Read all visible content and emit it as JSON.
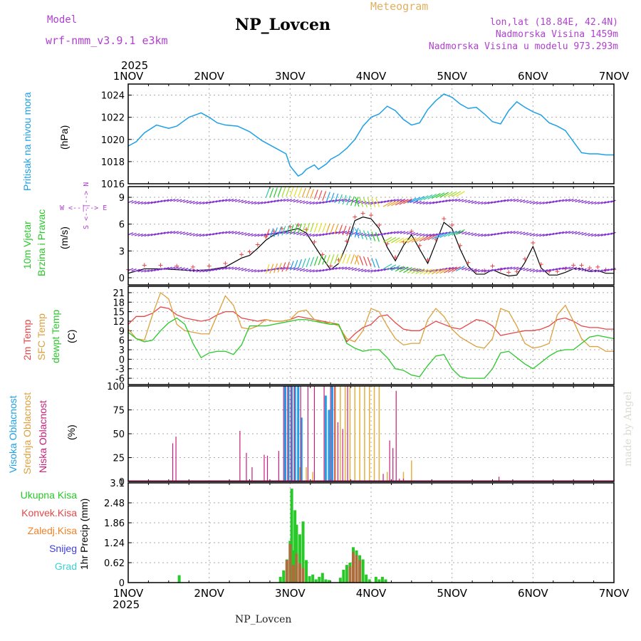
{
  "header": {
    "model_label": "Model",
    "model_name": "wrf-nmm_v3.9.1 e3km",
    "title": "NP_Lovcen",
    "meteogram": "Meteogram",
    "lonlat": "lon,lat (18.84E, 42.4N)",
    "elev": "Nadmorska Visina 1459m",
    "elev_model": "Nadmorska Visina u modelu 973.293m",
    "year_top": "2025",
    "year_bottom": "2025",
    "footer": "NP_Lovcen",
    "credit": "made by Angel"
  },
  "colors": {
    "pressure": "#1ea0e6",
    "temp2m": "#e64646",
    "sfc": "#dca03c",
    "dewpt": "#28c828",
    "high_cloud": "#1ea0e6",
    "mid_cloud": "#e6b03c",
    "low_cloud": "#c81e78",
    "precip": "#28c828",
    "conv": "#e64646",
    "frozen": "#f08228",
    "snow": "#3c3ce6",
    "hail": "#3cd2d2",
    "wind_dir": "#b040d0"
  },
  "x_axis": {
    "ticks": [
      "1NOV",
      "2NOV",
      "3NOV",
      "4NOV",
      "5NOV",
      "6NOV",
      "7NOV"
    ]
  },
  "labels": {
    "p1_name": "Pritisak na nivou mora",
    "p1_unit": "(hPa)",
    "p2_name1": "10m Vjetar",
    "p2_name2": "Brzina i Pravac",
    "p2_unit": "(m/s)",
    "p2_dir": "W <--|--> E",
    "p2_dir2": "S <--|--> N",
    "p3_name1": "2m Temp",
    "p3_name2": "SFC Temp",
    "p3_name3": "dewpt Temp",
    "p3_unit": "(C)",
    "p4_name1": "Visoka Oblacnost",
    "p4_name2": "Srednja Oblacnost",
    "p4_name3": "Niska Oblacnost",
    "p4_unit": "(%)",
    "p5_unit": "1hr Precip (mm)",
    "leg_total": "Ukupna Kisa",
    "leg_conv": "Konvek.Kisa",
    "leg_frozen": "Zaledj.Kisa",
    "leg_snow": "Snijeg",
    "leg_hail": "Grad"
  },
  "chart_data": [
    {
      "type": "line",
      "title": "Pritisak na nivou mora",
      "ylabel": "(hPa)",
      "ylim": [
        1016,
        1025
      ],
      "yticks": [
        "1016",
        "1018",
        "1020",
        "1022",
        "1024"
      ],
      "x_days": [
        0,
        0.1,
        0.2,
        0.35,
        0.5,
        0.6,
        0.75,
        0.9,
        1.0,
        1.1,
        1.2,
        1.35,
        1.5,
        1.65,
        1.8,
        1.95,
        2.0,
        2.1,
        2.15,
        2.2,
        2.3,
        2.35,
        2.45,
        2.5,
        2.6,
        2.7,
        2.8,
        2.9,
        3.0,
        3.1,
        3.2,
        3.3,
        3.4,
        3.5,
        3.6,
        3.7,
        3.8,
        3.9,
        4.0,
        4.1,
        4.2,
        4.3,
        4.4,
        4.5,
        4.6,
        4.7,
        4.8,
        4.9,
        5.0,
        5.1,
        5.2,
        5.3,
        5.4,
        5.5,
        5.6,
        5.7,
        5.8,
        5.9,
        6.0
      ],
      "values": [
        1019.4,
        1019.8,
        1020.6,
        1021.3,
        1021.0,
        1021.2,
        1022.0,
        1022.4,
        1022.0,
        1021.5,
        1021.3,
        1021.2,
        1020.7,
        1019.9,
        1019.3,
        1018.7,
        1017.6,
        1016.7,
        1016.9,
        1017.3,
        1017.7,
        1017.3,
        1017.8,
        1018.2,
        1018.6,
        1019.2,
        1020.0,
        1021.2,
        1022.0,
        1022.3,
        1023.0,
        1022.6,
        1021.8,
        1021.3,
        1021.5,
        1022.7,
        1023.5,
        1024.1,
        1023.8,
        1023.2,
        1022.8,
        1022.9,
        1022.3,
        1021.6,
        1021.4,
        1022.6,
        1023.4,
        1022.9,
        1022.5,
        1022.2,
        1021.5,
        1021.2,
        1020.8,
        1019.8,
        1018.8,
        1018.7,
        1018.7,
        1018.6,
        1018.6
      ]
    },
    {
      "type": "line",
      "title": "10m Vjetar Brzina i Pravac",
      "ylabel": "(m/s)",
      "ylim": [
        -0.8,
        10.2
      ],
      "yticks": [
        "0",
        "3",
        "6",
        "9"
      ],
      "series": [
        {
          "name": "Brzina",
          "x": [
            0,
            0.2,
            0.4,
            0.6,
            0.8,
            1.0,
            1.2,
            1.4,
            1.5,
            1.6,
            1.7,
            1.8,
            1.9,
            2.0,
            2.1,
            2.2,
            2.3,
            2.4,
            2.5,
            2.6,
            2.7,
            2.8,
            2.9,
            3.0,
            3.1,
            3.2,
            3.3,
            3.4,
            3.5,
            3.6,
            3.7,
            3.8,
            3.9,
            4.0,
            4.1,
            4.2,
            4.3,
            4.4,
            4.5,
            4.6,
            4.7,
            4.8,
            4.9,
            5.0,
            5.1,
            5.2,
            5.3,
            5.4,
            5.5,
            5.6,
            5.7,
            5.8,
            5.9,
            6.0
          ],
          "values": [
            0.5,
            1.0,
            1.0,
            0.9,
            0.8,
            0.9,
            1.2,
            2.2,
            2.5,
            3.3,
            4.2,
            4.8,
            5.1,
            5.3,
            5.5,
            5.0,
            3.6,
            2.2,
            0.9,
            1.6,
            3.7,
            6.4,
            6.8,
            6.6,
            5.5,
            3.4,
            1.9,
            3.6,
            4.8,
            3.2,
            1.6,
            3.9,
            6.2,
            5.5,
            3.2,
            1.3,
            0.4,
            0.4,
            0.9,
            0.5,
            0.2,
            0.3,
            1.7,
            3.5,
            1.1,
            0.3,
            0.3,
            0.6,
            1.0,
            1.0,
            0.7,
            0.8,
            0.5,
            0.5
          ]
        },
        {
          "name": "Pravac",
          "values": [
            1,
            1,
            5,
            5,
            9,
            9,
            0,
            0,
            7,
            7,
            10,
            10,
            0,
            0
          ]
        }
      ]
    },
    {
      "type": "line",
      "title": "Temperature",
      "ylabel": "(C)",
      "ylim": [
        -8,
        23
      ],
      "yticks": [
        "-6",
        "-3",
        "0",
        "3",
        "6",
        "9",
        "12",
        "15",
        "18",
        "21"
      ],
      "x": [
        0,
        0.1,
        0.2,
        0.3,
        0.4,
        0.5,
        0.6,
        0.7,
        0.8,
        0.9,
        1.0,
        1.1,
        1.2,
        1.3,
        1.4,
        1.5,
        1.6,
        1.7,
        1.8,
        1.9,
        2.0,
        2.1,
        2.2,
        2.3,
        2.4,
        2.5,
        2.6,
        2.7,
        2.8,
        2.9,
        3.0,
        3.1,
        3.2,
        3.3,
        3.4,
        3.5,
        3.6,
        3.7,
        3.8,
        3.9,
        4.0,
        4.1,
        4.2,
        4.3,
        4.4,
        4.5,
        4.6,
        4.7,
        4.8,
        4.9,
        5.0,
        5.1,
        5.2,
        5.3,
        5.4,
        5.5,
        5.6,
        5.7,
        5.8,
        5.9,
        6.0
      ],
      "series": [
        {
          "name": "2m Temp",
          "values": [
            11,
            13.5,
            13.5,
            14.5,
            16.5,
            16,
            14,
            13,
            12.5,
            12,
            12.5,
            14,
            15,
            15,
            13,
            12.5,
            12,
            12.5,
            12,
            12,
            12.5,
            13.5,
            13,
            12.5,
            12,
            11.5,
            11,
            5.5,
            8,
            10,
            11,
            13.5,
            14,
            11.5,
            9.5,
            9,
            9,
            10.5,
            12,
            11,
            10,
            9.5,
            11,
            12.5,
            12,
            10.5,
            7.5,
            8,
            8.5,
            9,
            9,
            9.5,
            10.5,
            12.5,
            13,
            12,
            10.5,
            10,
            10,
            9.5,
            9.5
          ]
        },
        {
          "name": "SFC Temp",
          "values": [
            9.5,
            6.5,
            6,
            14,
            21,
            19,
            11,
            9,
            8.5,
            8,
            8,
            14,
            20,
            17,
            10,
            9.5,
            10.5,
            12.5,
            12,
            12,
            12.5,
            15,
            15.5,
            12.5,
            11.5,
            11.5,
            10.5,
            6.5,
            5.5,
            9,
            16,
            15,
            10.5,
            6.5,
            4.5,
            5,
            5,
            12.5,
            16,
            13.5,
            9.5,
            7,
            5.5,
            4,
            3.5,
            6.5,
            16,
            15,
            10.5,
            5,
            3.5,
            4,
            5,
            14,
            17,
            12,
            6.5,
            4,
            4,
            2.5,
            2.5
          ]
        },
        {
          "name": "dewpt Temp",
          "values": [
            8.5,
            6.5,
            5.5,
            6,
            9,
            11.5,
            13,
            11,
            5,
            0.5,
            2,
            2.5,
            2.5,
            1.5,
            4.5,
            10.5,
            10.5,
            10.5,
            11,
            11.5,
            12,
            12.5,
            12.5,
            12,
            11.5,
            11,
            11,
            5,
            3.5,
            2.5,
            3,
            3,
            0.5,
            -3,
            -3.5,
            -5,
            -5.5,
            -2,
            1,
            1.5,
            -3,
            -5.5,
            -6,
            -6,
            -6,
            -3,
            2,
            2.5,
            0.5,
            -1.5,
            -3,
            -1,
            1,
            2.5,
            3,
            3,
            5,
            7,
            7.5,
            7,
            6.5
          ]
        }
      ]
    },
    {
      "type": "bar",
      "title": "Oblacnost",
      "ylabel": "(%)",
      "ylim": [
        0,
        100
      ],
      "yticks": [
        "0",
        "25",
        "50",
        "75",
        "100"
      ],
      "series": [
        {
          "name": "Visoka Oblacnost",
          "x": [
            1.94,
            1.98,
            2.02,
            2.06,
            2.1,
            2.14,
            2.44,
            2.48,
            2.52
          ],
          "values": [
            100,
            100,
            100,
            100,
            100,
            67,
            90,
            75,
            100
          ]
        },
        {
          "name": "Srednja Oblacnost",
          "x": [
            2.12,
            2.2,
            2.28,
            2.56,
            2.62,
            2.68,
            2.74,
            2.8,
            2.86,
            2.92,
            2.98,
            3.04,
            3.1,
            3.2,
            3.4,
            3.5
          ],
          "values": [
            15,
            15,
            10,
            100,
            100,
            100,
            100,
            100,
            100,
            100,
            100,
            100,
            100,
            10,
            10,
            22
          ]
        },
        {
          "name": "Niska Oblacnost",
          "x": [
            0.55,
            0.59,
            1.38,
            1.46,
            1.53,
            1.68,
            1.72,
            1.86,
            1.92,
            1.97,
            2.01,
            2.05,
            2.13,
            2.22,
            2.3,
            2.42,
            2.5,
            2.55,
            2.59,
            2.65,
            2.71,
            3.15,
            3.23,
            3.27,
            3.31,
            3.35,
            3.4,
            4.35,
            4.42,
            4.58,
            5.08,
            5.48
          ],
          "values": [
            40,
            47,
            53,
            30,
            15,
            28,
            27,
            32,
            100,
            100,
            100,
            100,
            100,
            100,
            100,
            100,
            100,
            100,
            62,
            55,
            100,
            8,
            43,
            35,
            95,
            3,
            3,
            1,
            1,
            5,
            0,
            1
          ]
        }
      ]
    },
    {
      "type": "bar",
      "title": "1hr Precip",
      "ylabel": "1hr Precip (mm)",
      "ylim": [
        0,
        3.1
      ],
      "yticks": [
        "0",
        "0.62",
        "1.24",
        "1.86",
        "2.48",
        "3.1"
      ],
      "series": [
        {
          "name": "Ukupna Kisa",
          "x": [
            0.63,
            1.88,
            1.92,
            1.96,
            2.0,
            2.02,
            2.04,
            2.06,
            2.08,
            2.12,
            2.16,
            2.2,
            2.24,
            2.28,
            2.32,
            2.36,
            2.4,
            2.44,
            2.48,
            2.62,
            2.66,
            2.7,
            2.74,
            2.78,
            2.82,
            2.86,
            2.9,
            2.94,
            2.98,
            3.06,
            3.1,
            3.14,
            3.18
          ],
          "values": [
            0.23,
            0.18,
            0.38,
            0.72,
            1.3,
            2.92,
            1.0,
            2.25,
            1.8,
            1.5,
            1.9,
            0.7,
            0.2,
            0.25,
            0.1,
            0.18,
            0.3,
            0.1,
            0.08,
            0.15,
            0.4,
            0.55,
            0.62,
            1.1,
            1.0,
            0.85,
            0.72,
            0.25,
            0.1,
            0.18,
            0.1,
            0.18,
            0.1
          ]
        },
        {
          "name": "Konvek.Kisa",
          "x": [
            1.96,
            2.0,
            2.04,
            2.08,
            2.12,
            2.16,
            2.74,
            2.78,
            2.82,
            2.86
          ],
          "values": [
            0.7,
            1.2,
            0.55,
            0.9,
            0.6,
            0.45,
            0.5,
            0.95,
            0.85,
            0.7
          ]
        }
      ]
    }
  ]
}
